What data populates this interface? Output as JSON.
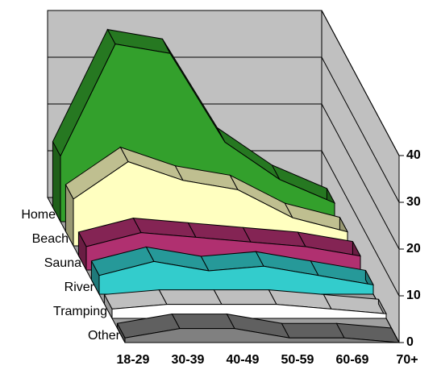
{
  "chart_data": {
    "type": "area3d",
    "categories": [
      "18-29",
      "30-39",
      "40-49",
      "50-59",
      "60-69",
      "70+"
    ],
    "series": [
      {
        "name": "Home",
        "color": "#33a02c",
        "values": [
          14,
          38,
          36,
          17,
          9,
          4
        ]
      },
      {
        "name": "Beach",
        "color": "#ffffc0",
        "values": [
          10,
          18,
          14,
          12,
          6,
          3
        ]
      },
      {
        "name": "Sauna",
        "color": "#b03070",
        "values": [
          5,
          8,
          7,
          6,
          5,
          3
        ]
      },
      {
        "name": "River",
        "color": "#33cccc",
        "values": [
          4,
          7,
          5,
          6,
          4,
          2
        ]
      },
      {
        "name": "Tramping",
        "color": "#ffffff",
        "values": [
          2,
          3,
          3,
          3,
          2,
          1
        ]
      },
      {
        "name": "Other",
        "color": "#808080",
        "values": [
          1,
          3,
          3,
          1,
          1,
          0
        ]
      }
    ],
    "ylim": [
      0,
      40
    ],
    "yticks": [
      0,
      10,
      20,
      30,
      40
    ],
    "grid": true
  }
}
